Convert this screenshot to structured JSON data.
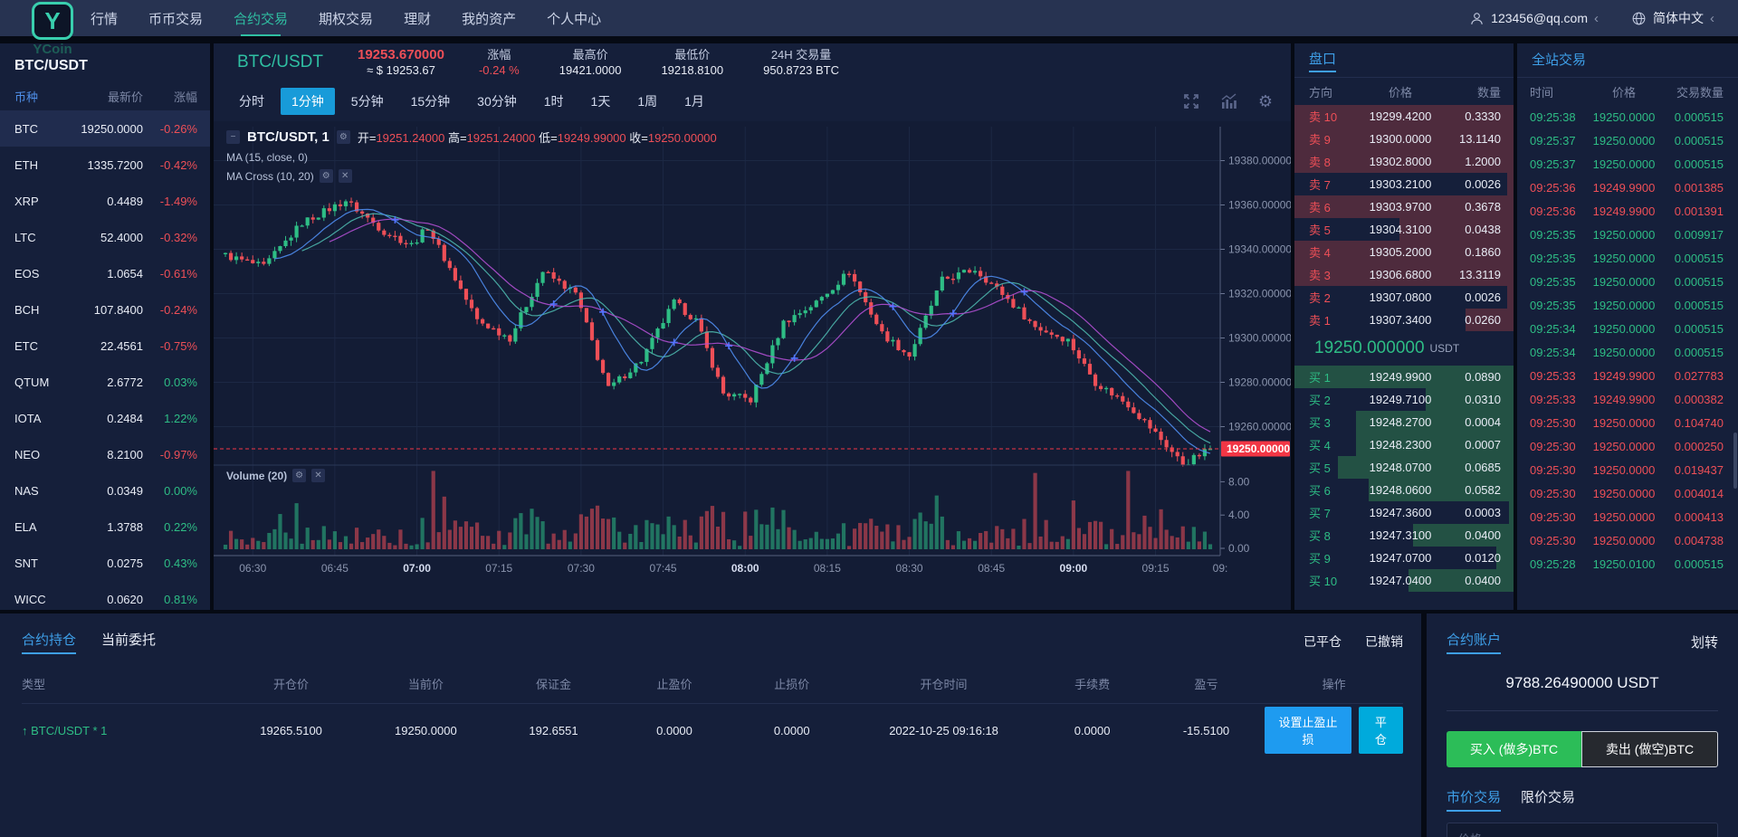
{
  "colors": {
    "accent_teal": "#2fbfa2",
    "accent_blue": "#3e9fe8",
    "tab_active": "#189bd9",
    "up": "#2ebd85",
    "down": "#ee4f57",
    "buy_button": "#2cbd58"
  },
  "navbar": {
    "logo_text": "YCoin",
    "items": [
      "行情",
      "币币交易",
      "合约交易",
      "期权交易",
      "理财",
      "我的资产",
      "个人中心"
    ],
    "active": "合约交易",
    "user_email": "123456@qq.com",
    "language": "简体中文"
  },
  "sidebar": {
    "title": "BTC/USDT",
    "columns": [
      "币种",
      "最新价",
      "涨幅"
    ],
    "coins": [
      {
        "symbol": "BTC",
        "price": "19250.0000",
        "change": "-0.26%",
        "selected": true
      },
      {
        "symbol": "ETH",
        "price": "1335.7200",
        "change": "-0.42%"
      },
      {
        "symbol": "XRP",
        "price": "0.4489",
        "change": "-1.49%"
      },
      {
        "symbol": "LTC",
        "price": "52.4000",
        "change": "-0.32%"
      },
      {
        "symbol": "EOS",
        "price": "1.0654",
        "change": "-0.61%"
      },
      {
        "symbol": "BCH",
        "price": "107.8400",
        "change": "-0.24%"
      },
      {
        "symbol": "ETC",
        "price": "22.4561",
        "change": "-0.75%"
      },
      {
        "symbol": "QTUM",
        "price": "2.6772",
        "change": "0.03%"
      },
      {
        "symbol": "IOTA",
        "price": "0.2484",
        "change": "1.22%"
      },
      {
        "symbol": "NEO",
        "price": "8.2100",
        "change": "-0.97%"
      },
      {
        "symbol": "NAS",
        "price": "0.0349",
        "change": "0.00%"
      },
      {
        "symbol": "ELA",
        "price": "1.3788",
        "change": "0.22%"
      },
      {
        "symbol": "SNT",
        "price": "0.0275",
        "change": "0.43%"
      },
      {
        "symbol": "WICC",
        "price": "0.0620",
        "change": "0.81%"
      }
    ]
  },
  "chart_panel": {
    "symbol": "BTC/USDT",
    "price": "19253.670000",
    "approx": "≈ $ 19253.67",
    "stats": [
      {
        "label": "涨幅",
        "value": "-0.24 %",
        "red": true
      },
      {
        "label": "最高价",
        "value": "19421.0000"
      },
      {
        "label": "最低价",
        "value": "19218.8100"
      },
      {
        "label": "24H 交易量",
        "value": "950.8723 BTC"
      }
    ],
    "timeframes": [
      "分时",
      "1分钟",
      "5分钟",
      "15分钟",
      "30分钟",
      "1时",
      "1天",
      "1周",
      "1月"
    ],
    "active_timeframe": "1分钟",
    "legend": {
      "title": "BTC/USDT, 1",
      "ohlc": [
        [
          "开",
          "19251.24000"
        ],
        [
          "高",
          "19251.24000"
        ],
        [
          "低",
          "19249.99000"
        ],
        [
          "收",
          "19250.00000"
        ]
      ],
      "ma1": "MA (15, close, 0)",
      "ma2": "MA Cross (10, 20)"
    },
    "volume_label": "Volume (20)"
  },
  "chart_data": {
    "type": "candlestick",
    "title": "BTC/USDT, 1",
    "interval_minutes": 1,
    "start_time": "06:25",
    "total_minutes": 181,
    "y_ticks": [
      19260,
      19280,
      19300,
      19320,
      19340,
      19360,
      19380
    ],
    "y_range_main": [
      19242,
      19388
    ],
    "x_tick_minutes": [
      5,
      20,
      35,
      50,
      65,
      80,
      95,
      110,
      125,
      140,
      155,
      170,
      185
    ],
    "x_tick_labels": [
      "06:30",
      "06:45",
      "07:00",
      "07:15",
      "07:30",
      "07:45",
      "08:00",
      "08:15",
      "08:30",
      "08:45",
      "09:00",
      "09:15",
      "09:"
    ],
    "x_tick_bold": [
      "07:00",
      "08:00",
      "09:00"
    ],
    "current_price": 19250.0,
    "current_price_label": "19250.00000",
    "ohlc_last": {
      "open": 19251.24,
      "high": 19251.24,
      "low": 19249.99,
      "close": 19250.0
    },
    "volume_ticks": [
      0,
      4,
      8
    ],
    "volume_tick_labels": [
      "0.00",
      "4.00",
      "8.00"
    ],
    "price_keyframes": [
      [
        0,
        19338
      ],
      [
        8,
        19332
      ],
      [
        15,
        19352
      ],
      [
        23,
        19362
      ],
      [
        30,
        19348
      ],
      [
        35,
        19342
      ],
      [
        38,
        19350
      ],
      [
        47,
        19308
      ],
      [
        53,
        19300
      ],
      [
        59,
        19330
      ],
      [
        65,
        19320
      ],
      [
        71,
        19277
      ],
      [
        77,
        19290
      ],
      [
        83,
        19316
      ],
      [
        87,
        19308
      ],
      [
        92,
        19275
      ],
      [
        97,
        19272
      ],
      [
        103,
        19307
      ],
      [
        109,
        19316
      ],
      [
        115,
        19330
      ],
      [
        121,
        19302
      ],
      [
        126,
        19292
      ],
      [
        132,
        19326
      ],
      [
        138,
        19331
      ],
      [
        143,
        19320
      ],
      [
        149,
        19305
      ],
      [
        155,
        19299
      ],
      [
        160,
        19280
      ],
      [
        166,
        19270
      ],
      [
        171,
        19257
      ],
      [
        176,
        19243
      ],
      [
        181,
        19250
      ]
    ],
    "volume_spikes": [
      [
        10,
        2.6
      ],
      [
        13,
        2.2
      ],
      [
        38,
        8.4
      ],
      [
        40,
        2.0
      ],
      [
        56,
        1.8
      ],
      [
        71,
        2.4
      ],
      [
        95,
        3.2
      ],
      [
        103,
        1.8
      ],
      [
        130,
        2.2
      ],
      [
        141,
        1.6
      ],
      [
        148,
        7.2
      ],
      [
        150,
        2.6
      ],
      [
        155,
        2.4
      ],
      [
        160,
        2.2
      ],
      [
        165,
        7.8
      ],
      [
        168,
        3.4
      ],
      [
        171,
        2.4
      ]
    ],
    "up_color": "#2ebd85",
    "down_color": "#ee4f57",
    "ma_periods": [
      15,
      10,
      20
    ],
    "ma_colors": [
      "#4db6ac",
      "#4f8df0",
      "#b04fd0"
    ]
  },
  "orderbook": {
    "title": "盘口",
    "columns": [
      "方向",
      "价格",
      "数量"
    ],
    "asks": [
      {
        "label": "卖 10",
        "price": "19299.4200",
        "amount": "0.3330",
        "depth": 100
      },
      {
        "label": "卖 9",
        "price": "19300.0000",
        "amount": "13.1140",
        "depth": 100
      },
      {
        "label": "卖 8",
        "price": "19302.8000",
        "amount": "1.2000",
        "depth": 100
      },
      {
        "label": "卖 7",
        "price": "19303.2100",
        "amount": "0.0026",
        "depth": 3
      },
      {
        "label": "卖 6",
        "price": "19303.9700",
        "amount": "0.3678",
        "depth": 100
      },
      {
        "label": "卖 5",
        "price": "19304.3100",
        "amount": "0.0438",
        "depth": 52
      },
      {
        "label": "卖 4",
        "price": "19305.2000",
        "amount": "0.1860",
        "depth": 100
      },
      {
        "label": "卖 3",
        "price": "19306.6800",
        "amount": "13.3119",
        "depth": 100
      },
      {
        "label": "卖 2",
        "price": "19307.0800",
        "amount": "0.0026",
        "depth": 3
      },
      {
        "label": "卖 1",
        "price": "19307.3400",
        "amount": "0.0260",
        "depth": 22
      }
    ],
    "current_price": "19250.000000",
    "unit": "USDT",
    "bids": [
      {
        "label": "买 1",
        "price": "19249.9900",
        "amount": "0.0890",
        "depth": 100
      },
      {
        "label": "买 2",
        "price": "19249.7100",
        "amount": "0.0310",
        "depth": 40
      },
      {
        "label": "买 3",
        "price": "19248.2700",
        "amount": "0.0004",
        "depth": 72
      },
      {
        "label": "买 4",
        "price": "19248.2300",
        "amount": "0.0007",
        "depth": 72
      },
      {
        "label": "买 5",
        "price": "19248.0700",
        "amount": "0.0685",
        "depth": 80
      },
      {
        "label": "买 6",
        "price": "19248.0600",
        "amount": "0.0582",
        "depth": 66
      },
      {
        "label": "买 7",
        "price": "19247.3600",
        "amount": "0.0003",
        "depth": 2
      },
      {
        "label": "买 8",
        "price": "19247.3100",
        "amount": "0.0400",
        "depth": 46
      },
      {
        "label": "买 9",
        "price": "19247.0700",
        "amount": "0.0120",
        "depth": 8
      },
      {
        "label": "买 10",
        "price": "19247.0400",
        "amount": "0.0400",
        "depth": 48
      }
    ]
  },
  "trades": {
    "title": "全站交易",
    "columns": [
      "时间",
      "价格",
      "交易数量"
    ],
    "rows": [
      {
        "time": "09:25:38",
        "price": "19250.0000",
        "amount": "0.000515",
        "side": "buy"
      },
      {
        "time": "09:25:37",
        "price": "19250.0000",
        "amount": "0.000515",
        "side": "buy"
      },
      {
        "time": "09:25:37",
        "price": "19250.0000",
        "amount": "0.000515",
        "side": "buy"
      },
      {
        "time": "09:25:36",
        "price": "19249.9900",
        "amount": "0.001385",
        "side": "sell"
      },
      {
        "time": "09:25:36",
        "price": "19249.9900",
        "amount": "0.001391",
        "side": "sell"
      },
      {
        "time": "09:25:35",
        "price": "19250.0000",
        "amount": "0.009917",
        "side": "buy"
      },
      {
        "time": "09:25:35",
        "price": "19250.0000",
        "amount": "0.000515",
        "side": "buy"
      },
      {
        "time": "09:25:35",
        "price": "19250.0000",
        "amount": "0.000515",
        "side": "buy"
      },
      {
        "time": "09:25:35",
        "price": "19250.0000",
        "amount": "0.000515",
        "side": "buy"
      },
      {
        "time": "09:25:34",
        "price": "19250.0000",
        "amount": "0.000515",
        "side": "buy"
      },
      {
        "time": "09:25:34",
        "price": "19250.0000",
        "amount": "0.000515",
        "side": "buy"
      },
      {
        "time": "09:25:33",
        "price": "19249.9900",
        "amount": "0.027783",
        "side": "sell"
      },
      {
        "time": "09:25:33",
        "price": "19249.9900",
        "amount": "0.000382",
        "side": "sell"
      },
      {
        "time": "09:25:30",
        "price": "19250.0000",
        "amount": "0.104740",
        "side": "sell"
      },
      {
        "time": "09:25:30",
        "price": "19250.0000",
        "amount": "0.000250",
        "side": "sell"
      },
      {
        "time": "09:25:30",
        "price": "19250.0000",
        "amount": "0.019437",
        "side": "sell"
      },
      {
        "time": "09:25:30",
        "price": "19250.0000",
        "amount": "0.004014",
        "side": "sell"
      },
      {
        "time": "09:25:30",
        "price": "19250.0000",
        "amount": "0.000413",
        "side": "sell"
      },
      {
        "time": "09:25:30",
        "price": "19250.0000",
        "amount": "0.004738",
        "side": "sell"
      },
      {
        "time": "09:25:28",
        "price": "19250.0100",
        "amount": "0.000515",
        "side": "buy"
      }
    ]
  },
  "positions": {
    "tabs": [
      "合约持仓",
      "当前委托"
    ],
    "active_tab": "合约持仓",
    "links": [
      "已平仓",
      "已撤销"
    ],
    "columns": [
      "类型",
      "开仓价",
      "当前价",
      "保证金",
      "止盈价",
      "止损价",
      "开仓时间",
      "手续费",
      "盈亏",
      "操作"
    ],
    "rows": [
      {
        "type": "BTC/USDT * 1",
        "open_price": "19265.5100",
        "current_price": "19250.0000",
        "margin": "192.6551",
        "take_profit": "0.0000",
        "stop_loss": "0.0000",
        "open_time": "2022-10-25 09:16:18",
        "fee": "0.0000",
        "pnl": "-15.5100"
      }
    ],
    "actions": [
      "设置止盈止损",
      "平仓"
    ]
  },
  "account": {
    "title": "合约账户",
    "transfer": "划转",
    "balance": "9788.26490000 USDT",
    "buy_button": "买入 (做多)BTC",
    "sell_button": "卖出 (做空)BTC",
    "mode_tabs": [
      "市价交易",
      "限价交易"
    ],
    "active_mode": "市价交易",
    "price_placeholder": "价格"
  }
}
